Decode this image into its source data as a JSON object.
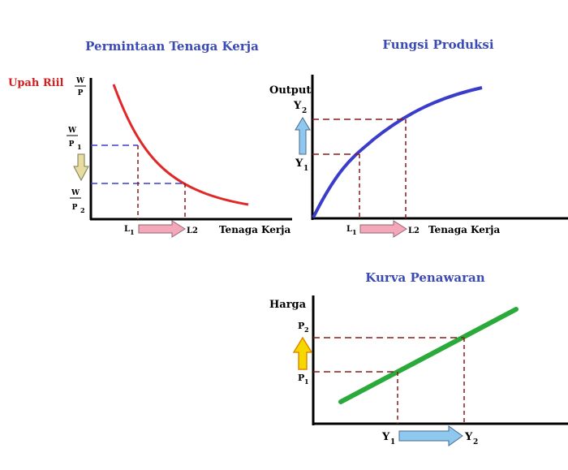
{
  "colors": {
    "title": "#3b4bb3",
    "demand_curve": "#e02828",
    "production_curve": "#3a3ccc",
    "supply_curve": "#2aaa3a",
    "axis": "#000000",
    "dashed_blue": "#3b3bd0",
    "dashed_maroon": "#8b1a1a",
    "wage_label": "#d21e1e",
    "arrow_pink": "#f4a7b9",
    "arrow_blue": "#8ec8ee",
    "arrow_tan": "#e8dca0",
    "arrow_yellow": "#f5d800"
  },
  "panel_demand": {
    "title": "Permintaan Tenaga Kerja",
    "y_caption": "Upah Riil",
    "y_axis_num": "W",
    "y_axis_den": "P",
    "y1_num": "W",
    "y1_den": "P",
    "y1_sub": "1",
    "y2_num": "W",
    "y2_den": "P",
    "y2_sub": "2",
    "x_axis_label": "Tenaga Kerja",
    "x1_letter": "L",
    "x1_sub": "1",
    "x2_label": "L2",
    "y_arrow_icon": "arrow-down-icon",
    "x_arrow_icon": "arrow-right-icon"
  },
  "panel_production": {
    "title": "Fungsi Produksi",
    "y_axis_label": "Output",
    "y2_letter": "Y",
    "y2_sub": "2",
    "y1_letter": "Y",
    "y1_sub": "1",
    "x_axis_label": "Tenaga Kerja",
    "x1_letter": "L",
    "x1_sub": "1",
    "x2_label": "L2",
    "y_arrow_icon": "arrow-up-icon",
    "x_arrow_icon": "arrow-right-icon"
  },
  "panel_supply": {
    "title": "Kurva Penawaran",
    "y_axis_label": "Harga",
    "y2_letter": "P",
    "y2_sub": "2",
    "y1_letter": "P",
    "y1_sub": "1",
    "x1_letter": "Y",
    "x1_sub": "1",
    "x2_letter": "Y",
    "x2_sub": "2",
    "y_arrow_icon": "arrow-up-icon",
    "x_arrow_icon": "arrow-right-icon"
  }
}
